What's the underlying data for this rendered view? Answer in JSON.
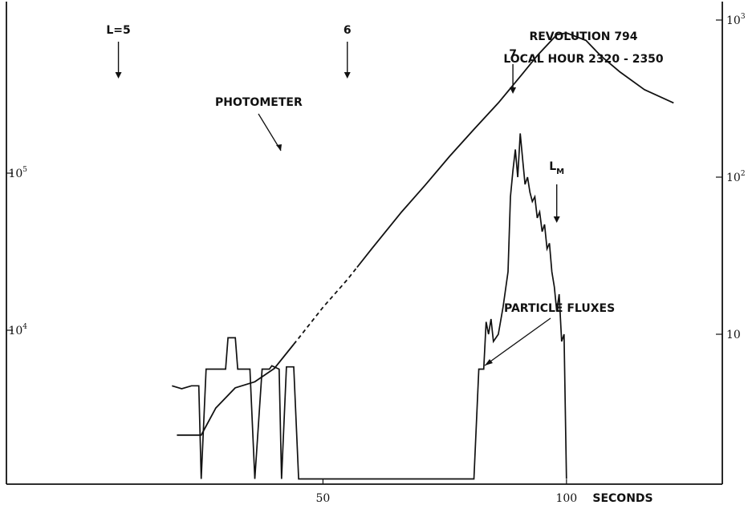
{
  "chart_data": {
    "type": "line",
    "annotation": {
      "revolution": "REVOLUTION 794",
      "local_hour": "LOCAL HOUR 2320 - 2350"
    },
    "x_axis": {
      "label": "SECONDS",
      "ticks": [
        "50",
        "100"
      ],
      "range": [
        -15,
        132
      ]
    },
    "y_left": {
      "scale": "log",
      "ticks": [
        {
          "base": "10",
          "exp": "4",
          "value": 10000
        },
        {
          "base": "10",
          "exp": "5",
          "value": 100000
        }
      ]
    },
    "y_right": {
      "scale": "log",
      "ticks": [
        {
          "base": "10",
          "exp": "",
          "value": 10
        },
        {
          "base": "10",
          "exp": "2",
          "value": 100
        },
        {
          "base": "10",
          "exp": "3",
          "value": 1000
        }
      ]
    },
    "markers": [
      {
        "label": "L=5",
        "x": 8
      },
      {
        "label": "6",
        "x": 55
      },
      {
        "label": "7",
        "x": 89
      },
      {
        "label": "L",
        "sub": "M",
        "x": 98
      }
    ],
    "series": [
      {
        "name": "PHOTOMETER",
        "axis": "left",
        "points": [
          [
            20,
            2150
          ],
          [
            25,
            2150
          ],
          [
            28,
            3200
          ],
          [
            32,
            4300
          ],
          [
            36,
            4700
          ],
          [
            40,
            5700
          ],
          [
            45,
            8900
          ],
          [
            50,
            14000
          ],
          [
            55,
            21000
          ],
          [
            60,
            33000
          ],
          [
            66,
            56000
          ],
          [
            71,
            84000
          ],
          [
            76,
            128000
          ],
          [
            81,
            190000
          ],
          [
            86,
            280000
          ],
          [
            91,
            430000
          ],
          [
            94,
            560000
          ],
          [
            98,
            760000
          ],
          [
            100,
            780000
          ],
          [
            104,
            700000
          ],
          [
            107,
            560000
          ],
          [
            111,
            440000
          ],
          [
            116,
            340000
          ],
          [
            122,
            280000
          ]
        ],
        "dashed_range": [
          44,
          57
        ]
      },
      {
        "name": "PARTICLE FLUXES",
        "axis": "right",
        "points": [
          [
            19,
            4.7
          ],
          [
            21,
            4.5
          ],
          [
            23,
            4.7
          ],
          [
            24.5,
            4.7
          ],
          [
            25,
            1.2
          ],
          [
            26,
            6
          ],
          [
            30,
            6
          ],
          [
            30.5,
            9.5
          ],
          [
            32,
            9.5
          ],
          [
            32.5,
            6
          ],
          [
            35,
            6
          ],
          [
            36,
            1.2
          ],
          [
            37.5,
            6
          ],
          [
            39,
            6
          ],
          [
            39.5,
            6.3
          ],
          [
            41,
            6
          ],
          [
            41.5,
            1.2
          ],
          [
            42.5,
            6.2
          ],
          [
            44,
            6.2
          ],
          [
            45,
            1.2
          ],
          [
            81,
            1.2
          ],
          [
            82,
            6
          ],
          [
            83,
            6
          ],
          [
            83.5,
            12
          ],
          [
            84,
            10
          ],
          [
            84.5,
            12.5
          ],
          [
            85,
            9
          ],
          [
            86,
            10
          ],
          [
            87,
            15
          ],
          [
            88,
            25
          ],
          [
            88.5,
            75
          ],
          [
            89,
            110
          ],
          [
            89.5,
            150
          ],
          [
            90,
            100
          ],
          [
            90.5,
            190
          ],
          [
            91,
            130
          ],
          [
            91.5,
            90
          ],
          [
            92,
            100
          ],
          [
            92.5,
            80
          ],
          [
            93,
            70
          ],
          [
            93.5,
            75
          ],
          [
            94,
            55
          ],
          [
            94.5,
            60
          ],
          [
            95,
            45
          ],
          [
            95.5,
            50
          ],
          [
            96,
            35
          ],
          [
            96.5,
            38
          ],
          [
            97,
            25
          ],
          [
            97.5,
            20
          ],
          [
            98,
            14
          ],
          [
            98.5,
            18
          ],
          [
            99,
            9
          ],
          [
            99.5,
            10
          ],
          [
            100,
            1.2
          ]
        ]
      }
    ]
  }
}
